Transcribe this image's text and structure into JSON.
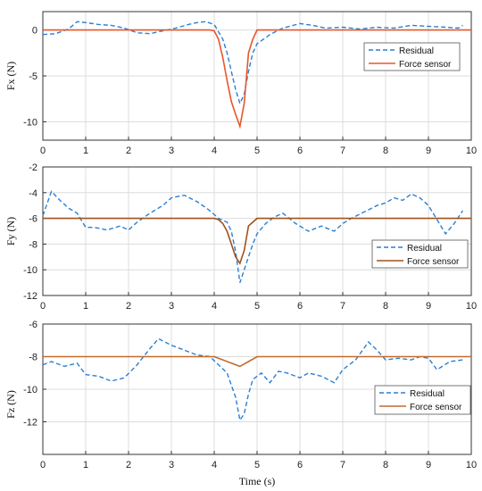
{
  "chart_data": [
    {
      "type": "line",
      "ylabel": "Fx (N)",
      "xlim": [
        0,
        10
      ],
      "ylim": [
        -12,
        2
      ],
      "x_ticks": [
        "0",
        "1",
        "2",
        "3",
        "4",
        "5",
        "6",
        "7",
        "8",
        "9",
        "10"
      ],
      "y_ticks": [
        0,
        -5,
        -10
      ],
      "y_tick_labels": [
        "0",
        "-5",
        "-10"
      ],
      "legend": "inside-right",
      "grid": true,
      "series": [
        {
          "name": "Residual",
          "style": "dashed",
          "color": "#2a7fd4",
          "x": [
            0,
            0.3,
            0.6,
            0.8,
            1.0,
            1.3,
            1.6,
            1.9,
            2.2,
            2.5,
            2.8,
            3.1,
            3.4,
            3.6,
            3.8,
            4.0,
            4.1,
            4.2,
            4.3,
            4.4,
            4.5,
            4.6,
            4.7,
            4.8,
            4.9,
            5.0,
            5.3,
            5.6,
            6.0,
            6.3,
            6.6,
            7.0,
            7.4,
            7.8,
            8.2,
            8.6,
            9.0,
            9.4,
            9.7,
            9.8
          ],
          "y": [
            -0.5,
            -0.4,
            0.1,
            0.9,
            0.8,
            0.6,
            0.5,
            0.2,
            -0.3,
            -0.4,
            -0.1,
            0.2,
            0.6,
            0.8,
            0.9,
            0.6,
            -0.2,
            -1.0,
            -2.5,
            -4.5,
            -6.5,
            -8.0,
            -7.0,
            -4.5,
            -2.5,
            -1.5,
            -0.5,
            0.2,
            0.7,
            0.5,
            0.2,
            0.3,
            0.1,
            0.3,
            0.2,
            0.5,
            0.4,
            0.3,
            0.2,
            0.5
          ]
        },
        {
          "name": "Force sensor",
          "style": "solid",
          "color": "#e8562a",
          "x": [
            0,
            3.9,
            4.0,
            4.1,
            4.2,
            4.3,
            4.4,
            4.5,
            4.6,
            4.7,
            4.8,
            4.9,
            5.0,
            10.0
          ],
          "y": [
            0,
            0,
            -0.1,
            -1.0,
            -3.0,
            -5.5,
            -7.8,
            -9.2,
            -10.5,
            -8.0,
            -2.5,
            -1.0,
            0,
            0
          ]
        }
      ]
    },
    {
      "type": "line",
      "ylabel": "Fy (N)",
      "xlim": [
        0,
        10
      ],
      "ylim": [
        -12,
        -2
      ],
      "x_ticks": [
        "0",
        "1",
        "2",
        "3",
        "4",
        "5",
        "6",
        "7",
        "8",
        "9",
        "10"
      ],
      "y_ticks": [
        -2,
        -4,
        -6,
        -8,
        -10,
        -12
      ],
      "y_tick_labels": [
        "-2",
        "-4",
        "-6",
        "-8",
        "-10",
        "-12"
      ],
      "legend": "bottom-right",
      "grid": true,
      "series": [
        {
          "name": "Residual",
          "style": "dashed",
          "color": "#2a7fd4",
          "x": [
            0,
            0.2,
            0.4,
            0.6,
            0.8,
            1.0,
            1.2,
            1.5,
            1.8,
            2.0,
            2.2,
            2.5,
            2.8,
            3.0,
            3.3,
            3.6,
            3.9,
            4.1,
            4.3,
            4.4,
            4.5,
            4.6,
            4.7,
            4.8,
            4.9,
            5.0,
            5.2,
            5.4,
            5.6,
            5.9,
            6.2,
            6.5,
            6.8,
            7.0,
            7.2,
            7.5,
            7.8,
            8.0,
            8.2,
            8.4,
            8.6,
            8.8,
            9.0,
            9.2,
            9.4,
            9.6,
            9.8
          ],
          "y": [
            -5.8,
            -3.9,
            -4.6,
            -5.2,
            -5.6,
            -6.7,
            -6.7,
            -6.9,
            -6.6,
            -6.9,
            -6.3,
            -5.6,
            -5.0,
            -4.4,
            -4.2,
            -4.7,
            -5.4,
            -6.0,
            -6.3,
            -7.0,
            -8.6,
            -11.0,
            -10.0,
            -9.0,
            -8.0,
            -7.2,
            -6.4,
            -5.9,
            -5.6,
            -6.4,
            -7.0,
            -6.6,
            -7.0,
            -6.4,
            -6.0,
            -5.5,
            -5.0,
            -4.8,
            -4.4,
            -4.6,
            -4.1,
            -4.4,
            -5.0,
            -6.1,
            -7.2,
            -6.4,
            -5.4
          ]
        },
        {
          "name": "Force sensor",
          "style": "solid",
          "color": "#a0521d",
          "x": [
            0,
            4.0,
            4.1,
            4.2,
            4.3,
            4.4,
            4.5,
            4.6,
            4.7,
            4.8,
            4.9,
            5.0,
            10.0
          ],
          "y": [
            -6,
            -6,
            -6.1,
            -6.4,
            -7.0,
            -8.0,
            -9.0,
            -9.5,
            -8.5,
            -6.6,
            -6.3,
            -6,
            -6
          ]
        }
      ]
    },
    {
      "type": "line",
      "ylabel": "Fz (N)",
      "xlabel": "Time (s)",
      "xlim": [
        0,
        10
      ],
      "ylim": [
        -14,
        -6
      ],
      "x_ticks": [
        "0",
        "1",
        "2",
        "3",
        "4",
        "5",
        "6",
        "7",
        "8",
        "9",
        "10"
      ],
      "y_ticks": [
        -6,
        -8,
        -10,
        -12
      ],
      "y_tick_labels": [
        "-6",
        "-8",
        "-10",
        "-12"
      ],
      "legend": "inside-right",
      "grid": true,
      "series": [
        {
          "name": "Residual",
          "style": "dashed",
          "color": "#2a7fd4",
          "x": [
            0,
            0.2,
            0.5,
            0.8,
            1.0,
            1.3,
            1.6,
            1.9,
            2.2,
            2.5,
            2.7,
            3.0,
            3.3,
            3.6,
            3.9,
            4.1,
            4.3,
            4.5,
            4.6,
            4.7,
            4.8,
            4.9,
            5.1,
            5.3,
            5.5,
            5.7,
            6.0,
            6.2,
            6.5,
            6.8,
            7.0,
            7.3,
            7.6,
            7.8,
            8.0,
            8.3,
            8.6,
            8.8,
            9.0,
            9.2,
            9.5,
            9.8
          ],
          "y": [
            -8.5,
            -8.3,
            -8.6,
            -8.4,
            -9.1,
            -9.2,
            -9.5,
            -9.3,
            -8.5,
            -7.5,
            -6.9,
            -7.3,
            -7.6,
            -7.9,
            -8.0,
            -8.5,
            -9.0,
            -10.5,
            -11.9,
            -11.5,
            -10.3,
            -9.4,
            -9.0,
            -9.6,
            -8.9,
            -9.0,
            -9.3,
            -9.0,
            -9.2,
            -9.6,
            -8.8,
            -8.2,
            -7.1,
            -7.6,
            -8.2,
            -8.1,
            -8.2,
            -8.0,
            -8.1,
            -8.8,
            -8.3,
            -8.2
          ]
        },
        {
          "name": "Force sensor",
          "style": "solid",
          "color": "#c26a2a",
          "x": [
            0,
            4.0,
            4.2,
            4.4,
            4.6,
            4.8,
            5.0,
            10.0
          ],
          "y": [
            -8,
            -8,
            -8.2,
            -8.4,
            -8.6,
            -8.3,
            -8.0,
            -8.0
          ]
        }
      ]
    }
  ],
  "legend": {
    "residual_label": "Residual",
    "force_label": "Force sensor"
  }
}
